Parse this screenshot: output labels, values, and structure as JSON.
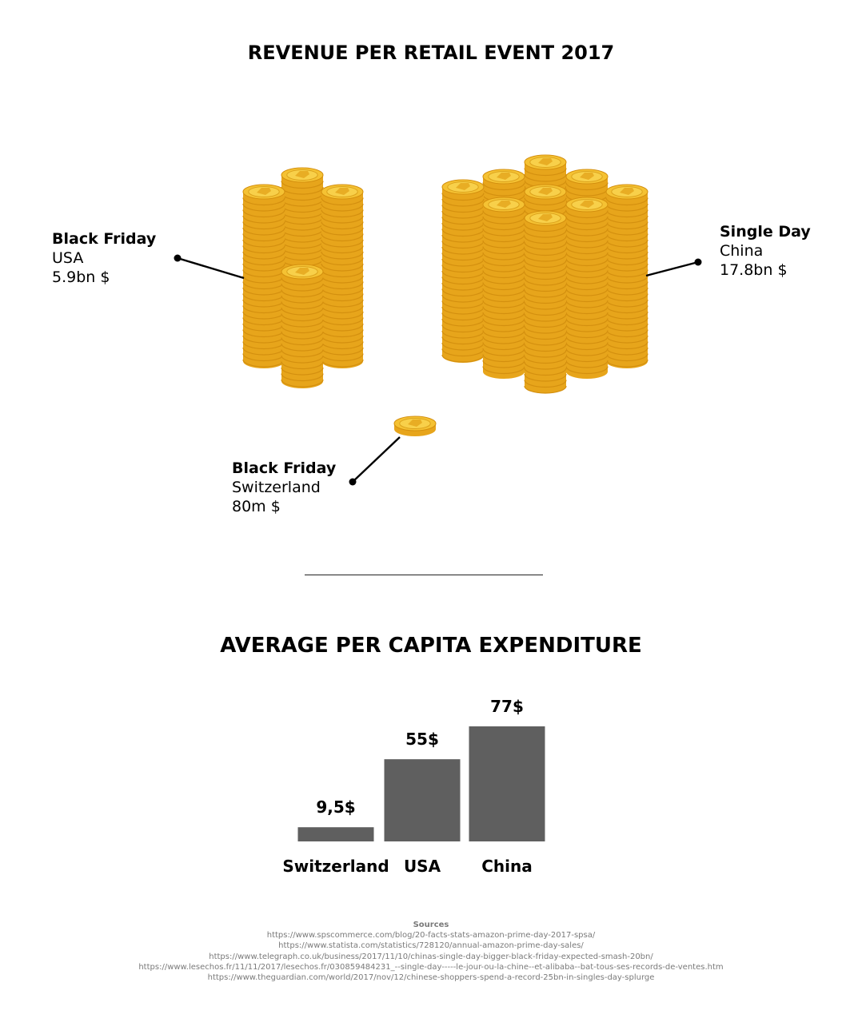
{
  "titles": {
    "top": "REVENUE PER RETAIL EVENT 2017",
    "bottom": "AVERAGE PER CAPITA EXPENDITURE"
  },
  "colors": {
    "coin_face": "#f5c233",
    "coin_edge": "#e7a51b",
    "coin_rim": "#d4900f",
    "bar": "#5f5f5f"
  },
  "chart_data": [
    {
      "type": "pictograph",
      "title": "REVENUE PER RETAIL EVENT 2017",
      "unit_icon": "gold-coin-stack",
      "items": [
        {
          "event": "Black Friday",
          "country": "USA",
          "value_label": "5.9bn $",
          "value_usd": 5900000000,
          "stacks": 4
        },
        {
          "event": "Single Day",
          "country": "China",
          "value_label": "17.8bn $",
          "value_usd": 17800000000,
          "stacks": 10
        },
        {
          "event": "Black Friday",
          "country": "Switzerland",
          "value_label": "80m $",
          "value_usd": 80000000,
          "stacks": 1
        }
      ]
    },
    {
      "type": "bar",
      "title": "AVERAGE PER CAPITA EXPENDITURE",
      "categories": [
        "Switzerland",
        "USA",
        "China"
      ],
      "values": [
        9.5,
        55,
        77
      ],
      "value_labels": [
        "9,5$",
        "55$",
        "77$"
      ],
      "ylim": [
        0,
        77
      ],
      "grid": false
    }
  ],
  "sources": {
    "heading": "Sources",
    "links": [
      "https://www.spscommerce.com/blog/20-facts-stats-amazon-prime-day-2017-spsa/",
      "https://www.statista.com/statistics/728120/annual-amazon-prime-day-sales/",
      "https://www.telegraph.co.uk/business/2017/11/10/chinas-single-day-bigger-black-friday-expected-smash-20bn/",
      "https://www.lesechos.fr/11/11/2017/lesechos.fr/030859484231_--single-day-----le-jour-ou-la-chine--et-alibaba--bat-tous-ses-records-de-ventes.htm",
      "https://www.theguardian.com/world/2017/nov/12/chinese-shoppers-spend-a-record-25bn-in-singles-day-splurge"
    ]
  }
}
